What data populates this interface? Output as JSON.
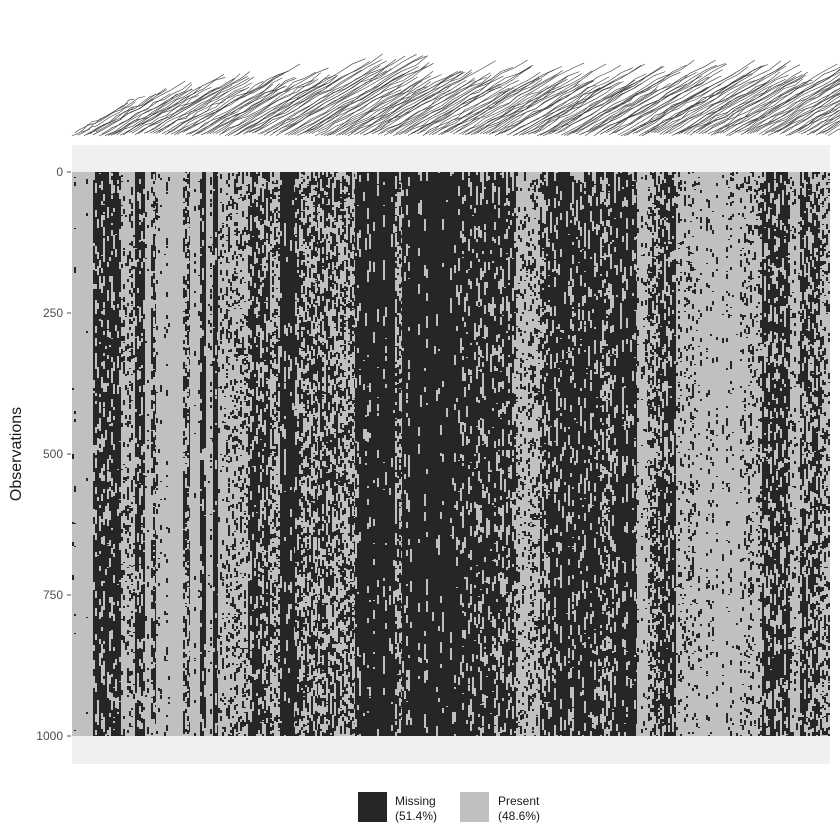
{
  "chart_data": {
    "type": "heatmap",
    "title": "",
    "xlabel": "",
    "ylabel": "Observations",
    "ylim": [
      0,
      1000
    ],
    "y_ticks": [
      0,
      250,
      500,
      750,
      1000
    ],
    "n_observations": 1000,
    "x_tick_labels_legible": false,
    "categories": [
      "Missing",
      "Present"
    ],
    "colors": {
      "Missing": "#262626",
      "Present": "#c0c0c0",
      "panel": "#ebebeb"
    },
    "legend": {
      "placement": "bottom",
      "items": [
        {
          "label": "Missing",
          "percent": "(51.4%)",
          "color": "#262626"
        },
        {
          "label": "Present",
          "percent": "(48.6%)",
          "color": "#c0c0c0"
        }
      ]
    },
    "summary": {
      "missing_pct": 51.4,
      "present_pct": 48.6
    }
  }
}
